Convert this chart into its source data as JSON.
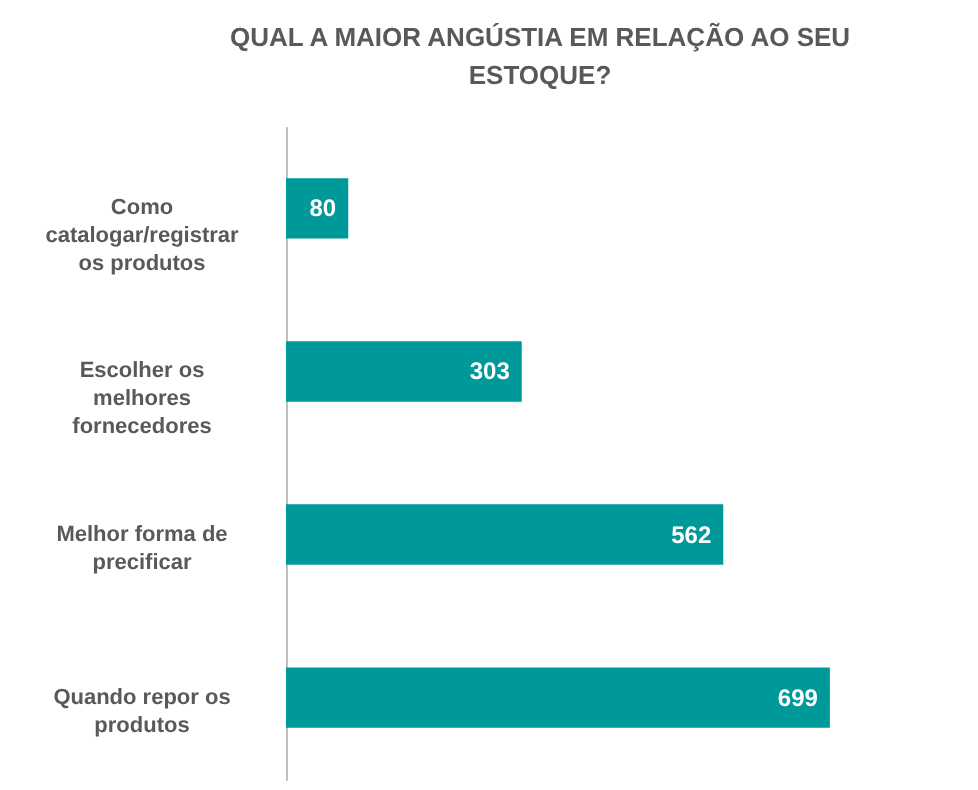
{
  "chart_data": {
    "type": "bar",
    "orientation": "horizontal",
    "title": "QUAL A MAIOR ANGÚSTIA EM RELAÇÃO AO SEU ESTOQUE?",
    "categories": [
      "Como catalogar/registrar os produtos",
      "Escolher os melhores fornecedores",
      "Melhor forma de precificar",
      "Quando repor os produtos"
    ],
    "values": [
      80,
      303,
      562,
      699
    ],
    "color": "#009999",
    "data_labels": true,
    "grid": false
  }
}
